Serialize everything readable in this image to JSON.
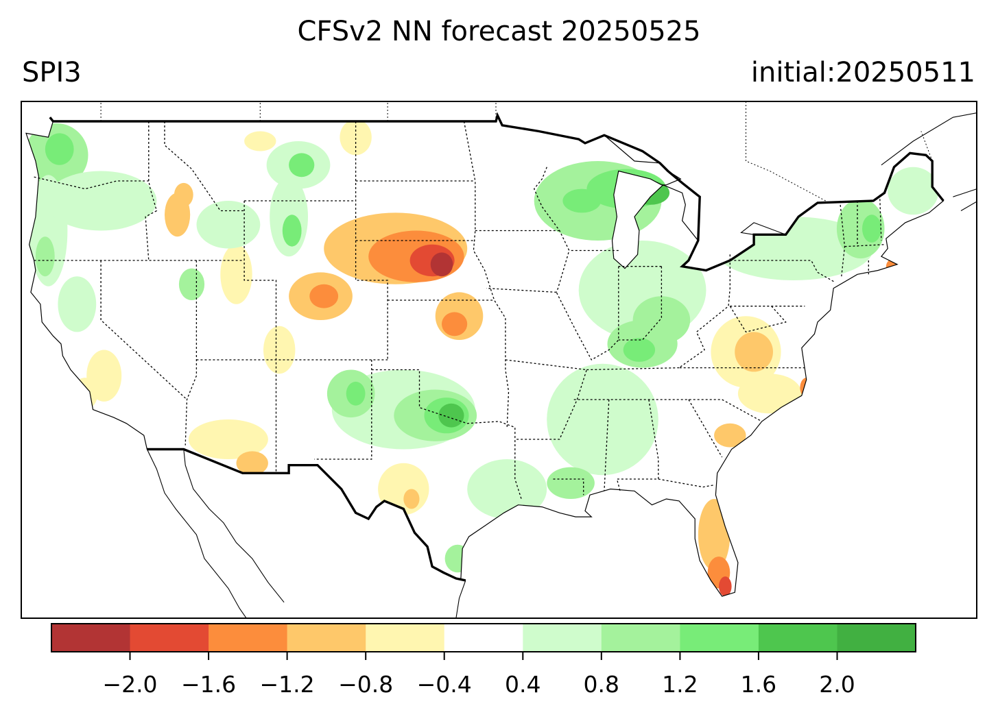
{
  "header": {
    "title": "CFSv2 NN forecast 20250525",
    "variable": "SPI3",
    "initial": "initial:20250511"
  },
  "colorbar": {
    "colors": [
      "#b23434",
      "#e34a33",
      "#fc8d3c",
      "#fec86a",
      "#fff6b0",
      "#ffffff",
      "#cffccc",
      "#a4f29c",
      "#78ec78",
      "#4ec64e",
      "#41b041"
    ],
    "tick_labels": [
      "−2.0",
      "−1.6",
      "−1.2",
      "−0.8",
      "−0.4",
      "0.4",
      "0.8",
      "1.2",
      "1.6",
      "2.0"
    ]
  },
  "map": {
    "region": "CONUS",
    "blobs": [
      {
        "lon": -122.8,
        "lat": 47.3,
        "rx": 2.0,
        "ry": 1.6,
        "level": 0.8
      },
      {
        "lon": -122.6,
        "lat": 47.6,
        "rx": 0.9,
        "ry": 0.8,
        "level": 1.3
      },
      {
        "lon": -123.3,
        "lat": 43.5,
        "rx": 1.2,
        "ry": 2.8,
        "level": 0.5
      },
      {
        "lon": -123.5,
        "lat": 42.2,
        "rx": 0.6,
        "ry": 1.0,
        "level": 0.9
      },
      {
        "lon": -120.0,
        "lat": 45.0,
        "rx": 3.5,
        "ry": 1.5,
        "level": 0.45
      },
      {
        "lon": -121.5,
        "lat": 39.8,
        "rx": 1.2,
        "ry": 1.4,
        "level": 0.45
      },
      {
        "lon": -119.8,
        "lat": 36.2,
        "rx": 1.1,
        "ry": 1.3,
        "level": -0.5
      },
      {
        "lon": -121.0,
        "lat": 35.3,
        "rx": 0.8,
        "ry": 0.8,
        "level": -0.8
      },
      {
        "lon": -115.2,
        "lat": 44.3,
        "rx": 0.8,
        "ry": 1.1,
        "level": -0.9
      },
      {
        "lon": -114.8,
        "lat": 45.3,
        "rx": 0.6,
        "ry": 0.6,
        "level": -1.2
      },
      {
        "lon": -111.5,
        "lat": 41.3,
        "rx": 1.0,
        "ry": 1.5,
        "level": -0.5
      },
      {
        "lon": -114.3,
        "lat": 40.8,
        "rx": 0.8,
        "ry": 0.8,
        "level": 0.8
      },
      {
        "lon": -112.0,
        "lat": 43.8,
        "rx": 2.0,
        "ry": 1.2,
        "level": 0.45
      },
      {
        "lon": -108.2,
        "lat": 44.2,
        "rx": 1.2,
        "ry": 2.0,
        "level": 0.6
      },
      {
        "lon": -108.0,
        "lat": 43.5,
        "rx": 0.6,
        "ry": 0.8,
        "level": 1.3
      },
      {
        "lon": -107.6,
        "lat": 46.8,
        "rx": 2.0,
        "ry": 1.2,
        "level": 0.7
      },
      {
        "lon": -107.4,
        "lat": 46.8,
        "rx": 0.8,
        "ry": 0.6,
        "level": 1.3
      },
      {
        "lon": -104.0,
        "lat": 48.2,
        "rx": 1.0,
        "ry": 0.9,
        "level": -0.5
      },
      {
        "lon": -110.0,
        "lat": 48.0,
        "rx": 1.0,
        "ry": 0.5,
        "level": -0.5
      },
      {
        "lon": -101.5,
        "lat": 42.6,
        "rx": 4.5,
        "ry": 1.8,
        "level": -0.9
      },
      {
        "lon": -100.2,
        "lat": 42.2,
        "rx": 3.0,
        "ry": 1.3,
        "level": -1.3
      },
      {
        "lon": -99.2,
        "lat": 42.0,
        "rx": 1.4,
        "ry": 0.8,
        "level": -1.7
      },
      {
        "lon": -98.6,
        "lat": 41.8,
        "rx": 0.7,
        "ry": 0.6,
        "level": -2.1
      },
      {
        "lon": -106.2,
        "lat": 40.2,
        "rx": 2.0,
        "ry": 1.2,
        "level": -0.9
      },
      {
        "lon": -106.0,
        "lat": 40.2,
        "rx": 0.9,
        "ry": 0.6,
        "level": -1.3
      },
      {
        "lon": -97.5,
        "lat": 39.2,
        "rx": 1.5,
        "ry": 1.2,
        "level": -0.9
      },
      {
        "lon": -97.8,
        "lat": 38.8,
        "rx": 0.8,
        "ry": 0.6,
        "level": -1.3
      },
      {
        "lon": -108.8,
        "lat": 37.5,
        "rx": 1.0,
        "ry": 1.2,
        "level": -0.7
      },
      {
        "lon": -101.0,
        "lat": 34.5,
        "rx": 4.5,
        "ry": 2.0,
        "level": 0.6
      },
      {
        "lon": -99.0,
        "lat": 34.2,
        "rx": 2.6,
        "ry": 1.3,
        "level": 0.9
      },
      {
        "lon": -98.3,
        "lat": 34.2,
        "rx": 1.4,
        "ry": 0.9,
        "level": 1.4
      },
      {
        "lon": -98.0,
        "lat": 34.2,
        "rx": 0.8,
        "ry": 0.6,
        "level": 1.9
      },
      {
        "lon": -104.3,
        "lat": 35.3,
        "rx": 1.5,
        "ry": 1.2,
        "level": 0.8
      },
      {
        "lon": -104.0,
        "lat": 35.3,
        "rx": 0.6,
        "ry": 0.6,
        "level": 1.3
      },
      {
        "lon": -112.0,
        "lat": 33.0,
        "rx": 2.5,
        "ry": 1.0,
        "level": -0.45
      },
      {
        "lon": -110.5,
        "lat": 31.8,
        "rx": 1.0,
        "ry": 0.6,
        "level": -0.9
      },
      {
        "lon": -101.0,
        "lat": 30.5,
        "rx": 1.6,
        "ry": 1.3,
        "level": -0.5
      },
      {
        "lon": -100.5,
        "lat": 30.0,
        "rx": 0.5,
        "ry": 0.5,
        "level": -1.0
      },
      {
        "lon": -94.5,
        "lat": 30.5,
        "rx": 2.5,
        "ry": 1.5,
        "level": 0.5
      },
      {
        "lon": -97.6,
        "lat": 27.0,
        "rx": 0.8,
        "ry": 0.7,
        "level": 1.0
      },
      {
        "lon": -88.8,
        "lat": 45.0,
        "rx": 4.0,
        "ry": 2.0,
        "level": 0.8
      },
      {
        "lon": -87.0,
        "lat": 45.6,
        "rx": 2.5,
        "ry": 1.0,
        "level": 1.2
      },
      {
        "lon": -85.5,
        "lat": 45.4,
        "rx": 1.2,
        "ry": 0.6,
        "level": 1.6
      },
      {
        "lon": -89.8,
        "lat": 45.0,
        "rx": 1.2,
        "ry": 0.6,
        "level": 1.3
      },
      {
        "lon": -86.0,
        "lat": 40.5,
        "rx": 4.0,
        "ry": 2.5,
        "level": 0.5
      },
      {
        "lon": -84.8,
        "lat": 39.0,
        "rx": 1.8,
        "ry": 1.2,
        "level": 0.9
      },
      {
        "lon": -86.0,
        "lat": 37.8,
        "rx": 2.2,
        "ry": 1.2,
        "level": 0.9
      },
      {
        "lon": -86.2,
        "lat": 37.5,
        "rx": 1.0,
        "ry": 0.6,
        "level": 1.4
      },
      {
        "lon": -88.5,
        "lat": 34.0,
        "rx": 3.5,
        "ry": 2.8,
        "level": 0.5
      },
      {
        "lon": -90.5,
        "lat": 30.8,
        "rx": 1.5,
        "ry": 0.8,
        "level": 0.8
      },
      {
        "lon": -76.5,
        "lat": 42.6,
        "rx": 5.0,
        "ry": 1.6,
        "level": 0.5
      },
      {
        "lon": -72.3,
        "lat": 43.6,
        "rx": 1.5,
        "ry": 1.5,
        "level": 0.9
      },
      {
        "lon": -71.6,
        "lat": 43.6,
        "rx": 0.6,
        "ry": 0.7,
        "level": 1.3
      },
      {
        "lon": -69.0,
        "lat": 45.5,
        "rx": 1.6,
        "ry": 1.2,
        "level": 0.6
      },
      {
        "lon": -79.5,
        "lat": 37.4,
        "rx": 2.2,
        "ry": 1.8,
        "level": -0.8
      },
      {
        "lon": -79.0,
        "lat": 37.4,
        "rx": 1.2,
        "ry": 1.0,
        "level": -1.1
      },
      {
        "lon": -78.0,
        "lat": 35.3,
        "rx": 2.0,
        "ry": 1.0,
        "level": -0.8
      },
      {
        "lon": -75.7,
        "lat": 35.6,
        "rx": 0.4,
        "ry": 0.5,
        "level": -1.6
      },
      {
        "lon": -80.5,
        "lat": 33.2,
        "rx": 1.0,
        "ry": 0.6,
        "level": -0.9
      },
      {
        "lon": -81.5,
        "lat": 28.2,
        "rx": 1.0,
        "ry": 1.8,
        "level": -0.9
      },
      {
        "lon": -81.2,
        "lat": 26.3,
        "rx": 0.7,
        "ry": 0.8,
        "level": -1.4
      },
      {
        "lon": -80.8,
        "lat": 25.6,
        "rx": 0.4,
        "ry": 0.5,
        "level": -1.8
      },
      {
        "lon": -70.2,
        "lat": 41.7,
        "rx": 0.5,
        "ry": 0.4,
        "level": -1.6
      }
    ]
  }
}
